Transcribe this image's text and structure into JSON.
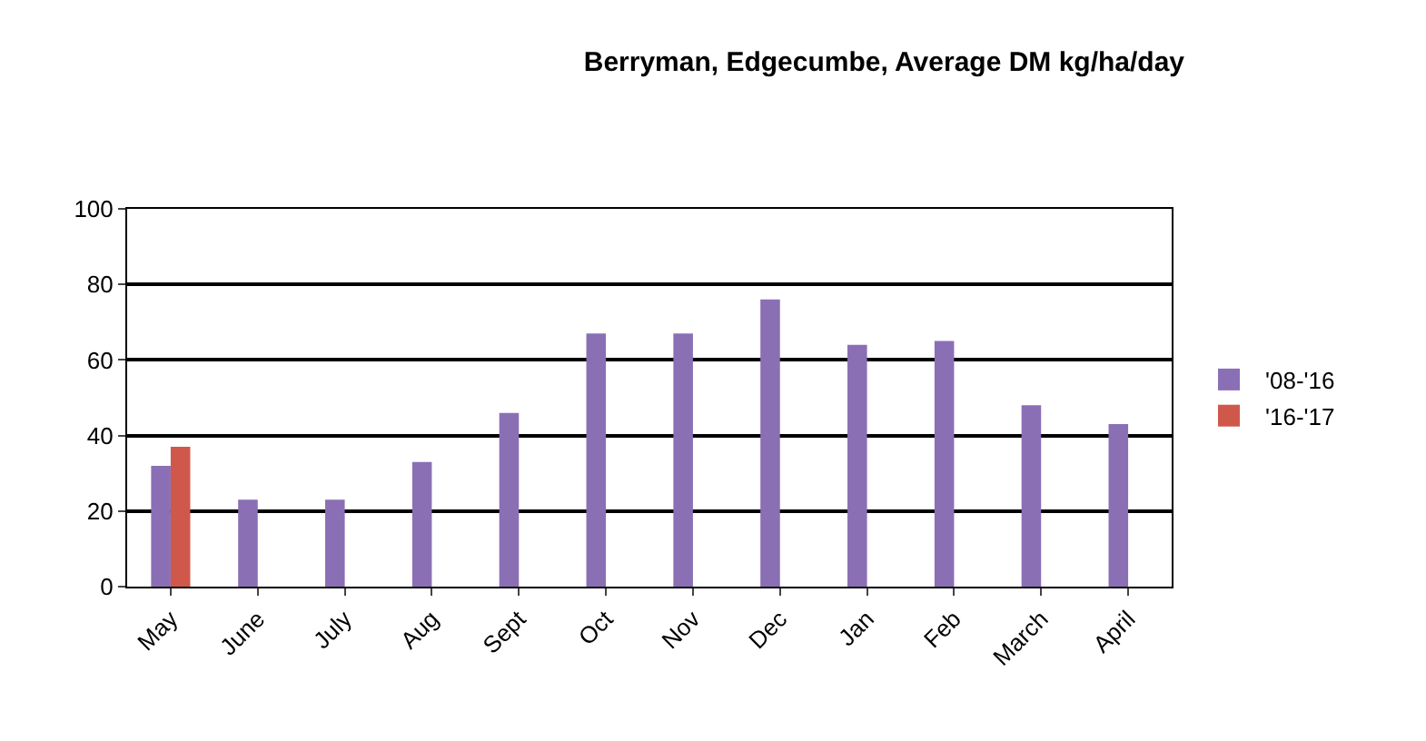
{
  "chart_data": {
    "type": "bar",
    "title": "Berryman, Edgecumbe, Average DM kg/ha/day",
    "categories": [
      "May",
      "June",
      "July",
      "Aug",
      "Sept",
      "Oct",
      "Nov",
      "Dec",
      "Jan",
      "Feb",
      "March",
      "April"
    ],
    "series": [
      {
        "name": "'08-'16",
        "color": "#8b6fb5",
        "values": [
          32,
          23,
          23,
          33,
          46,
          67,
          67,
          76,
          64,
          65,
          48,
          43
        ]
      },
      {
        "name": "'16-'17",
        "color": "#d0584a",
        "values": [
          37,
          null,
          null,
          null,
          null,
          null,
          null,
          null,
          null,
          null,
          null,
          null
        ]
      }
    ],
    "ylim": [
      0,
      100
    ],
    "yticks": [
      0,
      20,
      40,
      60,
      80,
      100
    ],
    "grid": "y",
    "legend": "right"
  }
}
